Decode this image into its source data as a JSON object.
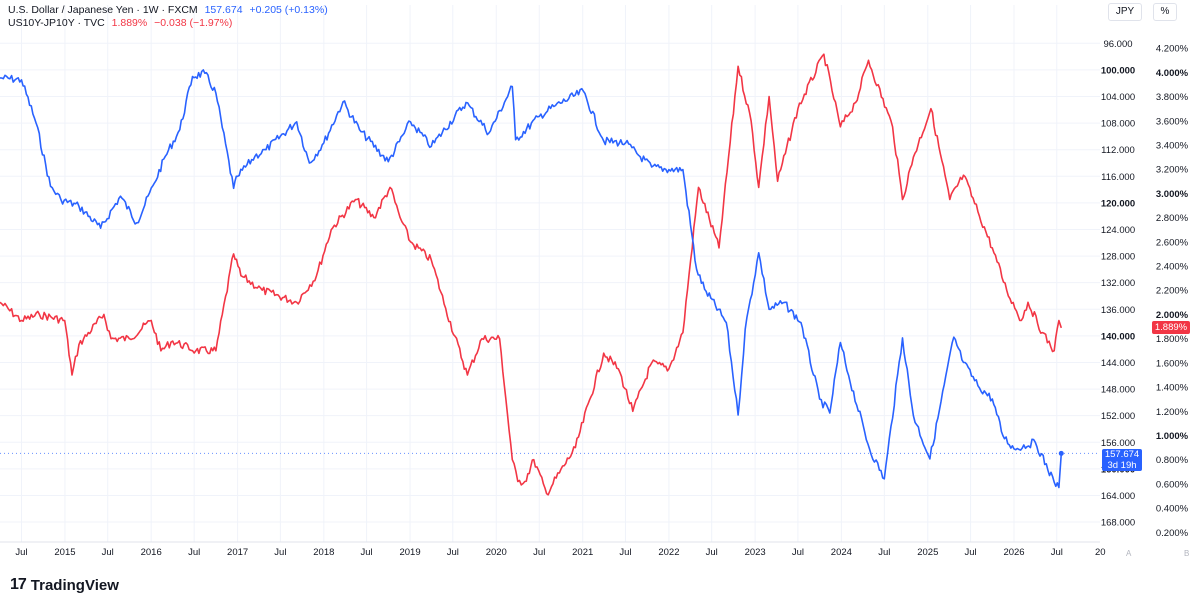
{
  "legend": {
    "usdjpy": {
      "name": "U.S. Dollar / Japanese Yen · 1W · FXCM",
      "last": "157.674",
      "change": "+0.205 (+0.13%)"
    },
    "spread": {
      "name": "US10Y-JP10Y · TVC",
      "last": "1.889%",
      "change": "−0.038 (−1.97%)"
    }
  },
  "scale_buttons": {
    "left_label": "JPY",
    "right_label": "%"
  },
  "price_tags": {
    "usdjpy_value": "157.674",
    "usdjpy_countdown": "3d 19h",
    "spread_value": "1.889%"
  },
  "time_axis_end_labels": {
    "a": "A",
    "b": "B"
  },
  "branding": {
    "name": "TradingView"
  },
  "colors": {
    "usdjpy": "#2962ff",
    "spread": "#f23645",
    "grid": "#f0f3fa",
    "axis_text": "#131722"
  },
  "chart_data": {
    "type": "line",
    "title": "",
    "x_axis": {
      "type": "date",
      "range": [
        "2014-04-01",
        "2026-12-31"
      ],
      "tick_labels": [
        "Jul",
        "2015",
        "Jul",
        "2016",
        "Jul",
        "2017",
        "Jul",
        "2018",
        "Jul",
        "2019",
        "Jul",
        "2020",
        "Jul",
        "2021",
        "Jul",
        "2022",
        "Jul",
        "2023",
        "Jul",
        "2024",
        "Jul",
        "2025",
        "Jul",
        "2026",
        "Jul",
        "20"
      ],
      "tick_dates": [
        "2014-07-01",
        "2015-01-01",
        "2015-07-01",
        "2016-01-01",
        "2016-07-01",
        "2017-01-01",
        "2017-07-01",
        "2018-01-01",
        "2018-07-01",
        "2019-01-01",
        "2019-07-01",
        "2020-01-01",
        "2020-07-01",
        "2021-01-01",
        "2021-07-01",
        "2022-01-01",
        "2022-07-01",
        "2023-01-01",
        "2023-07-01",
        "2024-01-01",
        "2024-07-01",
        "2025-01-01",
        "2025-07-01",
        "2026-01-01",
        "2026-07-01",
        "2027-01-01"
      ]
    },
    "y_axis_left": {
      "label": "JPY",
      "inverted": true,
      "range": [
        94,
        171
      ],
      "tick_labels": [
        "96.000",
        "100.000",
        "104.000",
        "108.000",
        "112.000",
        "116.000",
        "120.000",
        "124.000",
        "128.000",
        "132.000",
        "136.000",
        "140.000",
        "144.000",
        "148.000",
        "152.000",
        "156.000",
        "160.000",
        "164.000",
        "168.000"
      ],
      "bold_ticks": [
        "100.000",
        "120.000",
        "140.000",
        "160.000"
      ]
    },
    "y_axis_right": {
      "label": "%",
      "range": [
        0.12,
        4.35
      ],
      "tick_labels": [
        "0.200%",
        "0.400%",
        "0.600%",
        "0.800%",
        "1.000%",
        "1.200%",
        "1.400%",
        "1.600%",
        "1.800%",
        "2.000%",
        "2.200%",
        "2.400%",
        "2.600%",
        "2.800%",
        "3.000%",
        "3.200%",
        "3.400%",
        "3.600%",
        "3.800%",
        "4.000%",
        "4.200%"
      ],
      "bold_ticks": [
        "1.000%",
        "2.000%",
        "3.000%",
        "4.000%"
      ]
    },
    "grid": true,
    "series": [
      {
        "name": "U.S. Dollar / Japanese Yen",
        "axis": "left",
        "last_value": 157.674,
        "points": [
          [
            "2014-04-01",
            101.2
          ],
          [
            "2014-07-01",
            101.5
          ],
          [
            "2014-09-01",
            108.0
          ],
          [
            "2014-11-01",
            117.5
          ],
          [
            "2014-12-15",
            119.5
          ],
          [
            "2015-03-01",
            120.5
          ],
          [
            "2015-06-01",
            123.8
          ],
          [
            "2015-08-24",
            119.0
          ],
          [
            "2015-11-01",
            123.0
          ],
          [
            "2016-01-15",
            117.0
          ],
          [
            "2016-03-01",
            113.0
          ],
          [
            "2016-05-01",
            109.0
          ],
          [
            "2016-06-24",
            101.0
          ],
          [
            "2016-08-15",
            100.5
          ],
          [
            "2016-10-01",
            103.5
          ],
          [
            "2016-12-15",
            117.8
          ],
          [
            "2017-01-01",
            116.0
          ],
          [
            "2017-03-15",
            113.0
          ],
          [
            "2017-05-01",
            112.0
          ],
          [
            "2017-09-08",
            107.8
          ],
          [
            "2017-11-01",
            114.0
          ],
          [
            "2018-01-01",
            111.0
          ],
          [
            "2018-03-23",
            104.8
          ],
          [
            "2018-06-01",
            109.0
          ],
          [
            "2018-10-01",
            113.8
          ],
          [
            "2019-01-03",
            107.8
          ],
          [
            "2019-04-01",
            111.5
          ],
          [
            "2019-08-26",
            104.9
          ],
          [
            "2019-12-01",
            109.5
          ],
          [
            "2020-03-09",
            102.5
          ],
          [
            "2020-03-23",
            110.5
          ],
          [
            "2020-07-01",
            107.0
          ],
          [
            "2020-09-01",
            105.5
          ],
          [
            "2021-01-04",
            103.2
          ],
          [
            "2021-03-31",
            110.7
          ],
          [
            "2021-07-01",
            111.0
          ],
          [
            "2021-10-20",
            114.6
          ],
          [
            "2022-01-01",
            115.0
          ],
          [
            "2022-03-01",
            115.0
          ],
          [
            "2022-04-28",
            130.0
          ],
          [
            "2022-06-01",
            133.0
          ],
          [
            "2022-09-01",
            138.0
          ],
          [
            "2022-10-21",
            151.9
          ],
          [
            "2022-11-20",
            139.0
          ],
          [
            "2023-01-16",
            127.5
          ],
          [
            "2023-03-01",
            136.0
          ],
          [
            "2023-05-01",
            135.0
          ],
          [
            "2023-07-14",
            138.0
          ],
          [
            "2023-10-01",
            149.5
          ],
          [
            "2023-11-13",
            151.6
          ],
          [
            "2023-12-28",
            141.0
          ],
          [
            "2024-02-01",
            146.0
          ],
          [
            "2024-04-29",
            157.0
          ],
          [
            "2024-07-01",
            161.5
          ],
          [
            "2024-09-16",
            140.3
          ],
          [
            "2024-11-01",
            152.0
          ],
          [
            "2025-01-10",
            158.5
          ],
          [
            "2025-04-21",
            140.2
          ],
          [
            "2025-06-01",
            144.0
          ],
          [
            "2025-08-01",
            147.5
          ],
          [
            "2025-10-01",
            149.5
          ],
          [
            "2025-11-15",
            155.0
          ],
          [
            "2026-01-01",
            157.0
          ],
          [
            "2026-04-01",
            156.0
          ],
          [
            "2026-06-20",
            162.0
          ],
          [
            "2026-07-10",
            162.8
          ],
          [
            "2026-07-20",
            157.674
          ]
        ]
      },
      {
        "name": "US10Y-JP10Y",
        "axis": "right",
        "last_value": 1.889,
        "points": [
          [
            "2014-04-01",
            2.1
          ],
          [
            "2014-07-01",
            1.95
          ],
          [
            "2014-09-15",
            2.0
          ],
          [
            "2014-12-31",
            1.95
          ],
          [
            "2015-01-31",
            1.5
          ],
          [
            "2015-03-01",
            1.75
          ],
          [
            "2015-06-15",
            2.0
          ],
          [
            "2015-07-15",
            1.8
          ],
          [
            "2015-10-01",
            1.8
          ],
          [
            "2016-01-01",
            1.95
          ],
          [
            "2016-02-11",
            1.7
          ],
          [
            "2016-04-01",
            1.78
          ],
          [
            "2016-07-08",
            1.7
          ],
          [
            "2016-10-01",
            1.7
          ],
          [
            "2016-12-15",
            2.5
          ],
          [
            "2017-01-15",
            2.32
          ],
          [
            "2017-04-15",
            2.2
          ],
          [
            "2017-09-08",
            2.1
          ],
          [
            "2017-12-01",
            2.32
          ],
          [
            "2018-02-01",
            2.7
          ],
          [
            "2018-05-15",
            2.95
          ],
          [
            "2018-08-01",
            2.8
          ],
          [
            "2018-10-08",
            3.05
          ],
          [
            "2018-11-20",
            2.8
          ],
          [
            "2019-01-03",
            2.6
          ],
          [
            "2019-04-01",
            2.45
          ],
          [
            "2019-06-01",
            2.05
          ],
          [
            "2019-09-01",
            1.5
          ],
          [
            "2019-11-01",
            1.8
          ],
          [
            "2020-01-15",
            1.8
          ],
          [
            "2020-03-09",
            0.8
          ],
          [
            "2020-04-01",
            0.62
          ],
          [
            "2020-05-01",
            0.62
          ],
          [
            "2020-06-08",
            0.8
          ],
          [
            "2020-08-01",
            0.52
          ],
          [
            "2020-12-01",
            0.9
          ],
          [
            "2021-03-31",
            1.68
          ],
          [
            "2021-06-01",
            1.55
          ],
          [
            "2021-08-01",
            1.2
          ],
          [
            "2021-10-20",
            1.6
          ],
          [
            "2022-01-01",
            1.55
          ],
          [
            "2022-03-01",
            1.85
          ],
          [
            "2022-05-06",
            3.05
          ],
          [
            "2022-08-01",
            2.55
          ],
          [
            "2022-10-21",
            4.05
          ],
          [
            "2022-12-15",
            3.6
          ],
          [
            "2023-01-16",
            3.05
          ],
          [
            "2023-03-01",
            3.8
          ],
          [
            "2023-04-06",
            3.1
          ],
          [
            "2023-07-01",
            3.7
          ],
          [
            "2023-10-19",
            4.15
          ],
          [
            "2023-12-28",
            3.55
          ],
          [
            "2024-03-01",
            3.75
          ],
          [
            "2024-04-25",
            4.1
          ],
          [
            "2024-08-05",
            3.55
          ],
          [
            "2024-09-16",
            2.95
          ],
          [
            "2024-11-01",
            3.3
          ],
          [
            "2025-01-14",
            3.7
          ],
          [
            "2025-04-04",
            2.95
          ],
          [
            "2025-06-01",
            3.15
          ],
          [
            "2025-08-01",
            2.85
          ],
          [
            "2025-10-01",
            2.55
          ],
          [
            "2025-12-01",
            2.2
          ],
          [
            "2026-02-01",
            1.95
          ],
          [
            "2026-03-01",
            2.1
          ],
          [
            "2026-05-01",
            1.85
          ],
          [
            "2026-06-20",
            1.7
          ],
          [
            "2026-07-10",
            1.95
          ],
          [
            "2026-07-20",
            1.889
          ]
        ]
      }
    ]
  }
}
